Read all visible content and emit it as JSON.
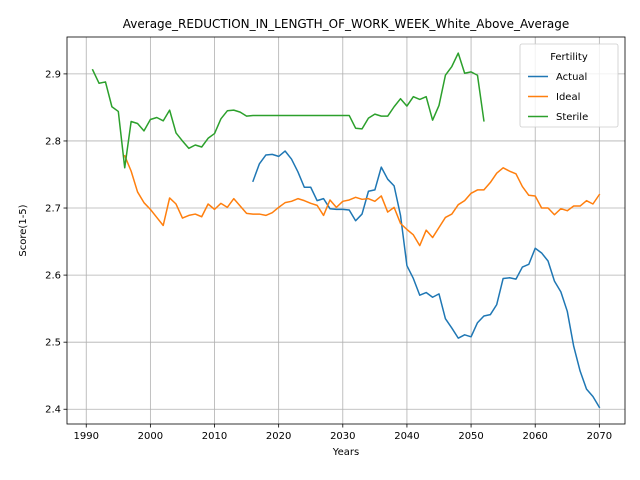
{
  "chart_data": {
    "type": "line",
    "title": "Average_REDUCTION_IN_LENGTH_OF_WORK_WEEK_White_Above_Average",
    "xlabel": "Years",
    "ylabel": "Score(1-5)",
    "xlim": [
      1987,
      2074
    ],
    "ylim": [
      2.378,
      2.955
    ],
    "xticks": [
      1990,
      2000,
      2010,
      2020,
      2030,
      2040,
      2050,
      2060,
      2070
    ],
    "yticks": [
      2.4,
      2.5,
      2.6,
      2.7,
      2.8,
      2.9
    ],
    "grid": true,
    "legend": {
      "title": "Fertility",
      "placement": "upper-right"
    },
    "series": [
      {
        "name": "Actual",
        "color": "#1f77b4",
        "x": [
          2016,
          2017,
          2018,
          2019,
          2020,
          2021,
          2022,
          2023,
          2024,
          2025,
          2026,
          2027,
          2028,
          2029,
          2030,
          2031,
          2032,
          2033,
          2034,
          2035,
          2036,
          2037,
          2038,
          2039,
          2040,
          2041,
          2042,
          2043,
          2044,
          2045,
          2046,
          2047,
          2048,
          2049,
          2050,
          2051,
          2052,
          2053,
          2054,
          2055,
          2056,
          2057,
          2058,
          2059,
          2060,
          2061,
          2062,
          2063,
          2064,
          2065,
          2066,
          2067,
          2068,
          2069,
          2070
        ],
        "y": [
          2.74,
          2.766,
          2.779,
          2.78,
          2.777,
          2.785,
          2.773,
          2.754,
          2.731,
          2.731,
          2.711,
          2.714,
          2.699,
          2.698,
          2.698,
          2.697,
          2.681,
          2.691,
          2.725,
          2.727,
          2.761,
          2.743,
          2.733,
          2.689,
          2.614,
          2.595,
          2.57,
          2.574,
          2.567,
          2.572,
          2.535,
          2.521,
          2.506,
          2.511,
          2.508,
          2.529,
          2.539,
          2.541,
          2.556,
          2.595,
          2.596,
          2.594,
          2.612,
          2.616,
          2.64,
          2.633,
          2.621,
          2.591,
          2.575,
          2.546,
          2.494,
          2.457,
          2.43,
          2.419,
          2.403
        ]
      },
      {
        "name": "Ideal",
        "color": "#ff7f0e",
        "x": [
          1996,
          1997,
          1998,
          1999,
          2000,
          2001,
          2002,
          2003,
          2004,
          2005,
          2006,
          2007,
          2008,
          2009,
          2010,
          2011,
          2012,
          2013,
          2014,
          2015,
          2016,
          2017,
          2018,
          2019,
          2020,
          2021,
          2022,
          2023,
          2024,
          2025,
          2026,
          2027,
          2028,
          2029,
          2030,
          2031,
          2032,
          2033,
          2034,
          2035,
          2036,
          2037,
          2038,
          2039,
          2040,
          2041,
          2042,
          2043,
          2044,
          2045,
          2046,
          2047,
          2048,
          2049,
          2050,
          2051,
          2052,
          2053,
          2054,
          2055,
          2056,
          2057,
          2058,
          2059,
          2060,
          2061,
          2062,
          2063,
          2064,
          2065,
          2066,
          2067,
          2068,
          2069,
          2070
        ],
        "y": [
          2.778,
          2.755,
          2.724,
          2.708,
          2.698,
          2.686,
          2.674,
          2.715,
          2.706,
          2.685,
          2.689,
          2.691,
          2.687,
          2.706,
          2.698,
          2.707,
          2.701,
          2.714,
          2.703,
          2.692,
          2.691,
          2.691,
          2.689,
          2.693,
          2.701,
          2.708,
          2.71,
          2.714,
          2.711,
          2.707,
          2.704,
          2.689,
          2.712,
          2.701,
          2.71,
          2.712,
          2.716,
          2.713,
          2.714,
          2.71,
          2.718,
          2.694,
          2.701,
          2.677,
          2.668,
          2.66,
          2.644,
          2.667,
          2.656,
          2.671,
          2.686,
          2.691,
          2.705,
          2.711,
          2.722,
          2.727,
          2.727,
          2.738,
          2.752,
          2.76,
          2.755,
          2.751,
          2.732,
          2.719,
          2.718,
          2.7,
          2.7,
          2.69,
          2.699,
          2.696,
          2.703,
          2.703,
          2.711,
          2.706,
          2.72
        ]
      },
      {
        "name": "Sterile",
        "color": "#2ca02c",
        "x": [
          1991,
          1992,
          1993,
          1994,
          1995,
          1996,
          1997,
          1998,
          1999,
          2000,
          2001,
          2002,
          2003,
          2004,
          2005,
          2006,
          2007,
          2008,
          2009,
          2010,
          2011,
          2012,
          2013,
          2014,
          2015,
          2016,
          2017,
          2018,
          2019,
          2020,
          2021,
          2022,
          2023,
          2024,
          2025,
          2026,
          2027,
          2028,
          2029,
          2030,
          2031,
          2032,
          2033,
          2034,
          2035,
          2036,
          2037,
          2038,
          2039,
          2040,
          2041,
          2042,
          2043,
          2044,
          2045,
          2046,
          2047,
          2048,
          2049,
          2050,
          2051,
          2052
        ],
        "y": [
          2.906,
          2.886,
          2.888,
          2.851,
          2.844,
          2.76,
          2.829,
          2.826,
          2.815,
          2.832,
          2.835,
          2.83,
          2.846,
          2.812,
          2.8,
          2.789,
          2.794,
          2.791,
          2.804,
          2.811,
          2.833,
          2.845,
          2.846,
          2.843,
          2.837,
          2.838,
          2.838,
          2.838,
          2.838,
          2.838,
          2.838,
          2.838,
          2.838,
          2.838,
          2.838,
          2.838,
          2.838,
          2.838,
          2.838,
          2.838,
          2.838,
          2.819,
          2.818,
          2.834,
          2.84,
          2.837,
          2.837,
          2.851,
          2.863,
          2.852,
          2.866,
          2.862,
          2.866,
          2.831,
          2.853,
          2.898,
          2.911,
          2.931,
          2.901,
          2.903,
          2.898,
          2.83
        ]
      }
    ]
  }
}
